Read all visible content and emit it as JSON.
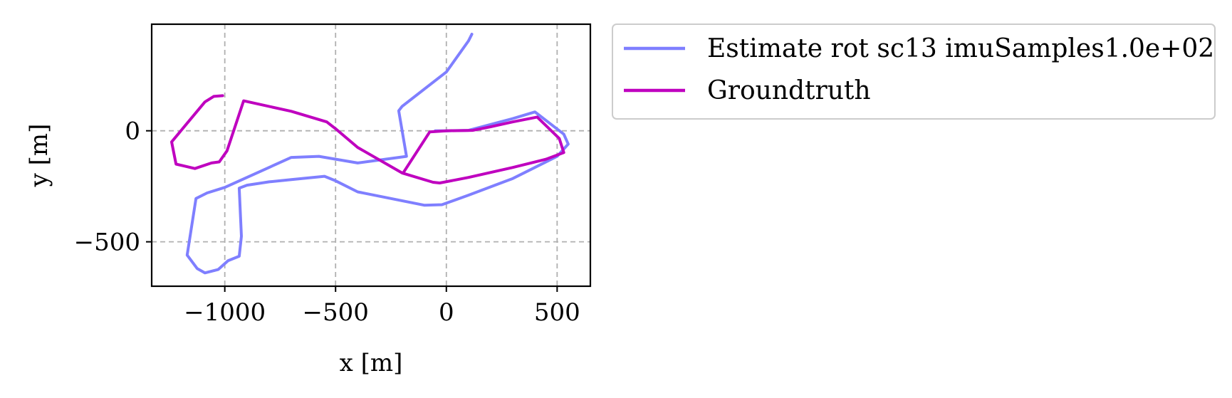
{
  "chart_data": {
    "type": "line",
    "title": "",
    "xlabel": "x [m]",
    "ylabel": "y [m]",
    "xlim": [
      -1330,
      650
    ],
    "ylim": [
      -700,
      480
    ],
    "xticks": [
      -1000,
      -500,
      0,
      500
    ],
    "yticks": [
      -500,
      0
    ],
    "xtick_labels": [
      "−1000",
      "−500",
      "0",
      "500"
    ],
    "ytick_labels": [
      "−500",
      "0"
    ],
    "grid": true,
    "legend_position": "outside-right-top",
    "series": [
      {
        "name": "Estimate rot sc13 imuSamples1.0e+02",
        "color": "#7f7fff",
        "points": [
          [
            115,
            435
          ],
          [
            100,
            405
          ],
          [
            0,
            265
          ],
          [
            -200,
            110
          ],
          [
            -215,
            90
          ],
          [
            -180,
            -115
          ],
          [
            -400,
            -145
          ],
          [
            -575,
            -115
          ],
          [
            -700,
            -120
          ],
          [
            -1000,
            -255
          ],
          [
            -1080,
            -280
          ],
          [
            -1130,
            -305
          ],
          [
            -1170,
            -560
          ],
          [
            -1125,
            -620
          ],
          [
            -1090,
            -640
          ],
          [
            -1030,
            -625
          ],
          [
            -985,
            -585
          ],
          [
            -935,
            -565
          ],
          [
            -925,
            -475
          ],
          [
            -935,
            -258
          ],
          [
            -900,
            -245
          ],
          [
            -800,
            -230
          ],
          [
            -700,
            -220
          ],
          [
            -550,
            -205
          ],
          [
            -500,
            -225
          ],
          [
            -400,
            -275
          ],
          [
            -100,
            -335
          ],
          [
            -20,
            -333
          ],
          [
            100,
            -290
          ],
          [
            300,
            -215
          ],
          [
            500,
            -115
          ],
          [
            550,
            -60
          ],
          [
            530,
            -15
          ],
          [
            400,
            85
          ],
          [
            300,
            55
          ],
          [
            100,
            2
          ],
          [
            0,
            0
          ],
          [
            -50,
            0
          ]
        ]
      },
      {
        "name": "Groundtruth",
        "color": "#bf00bf",
        "points": [
          [
            -1010,
            158
          ],
          [
            -1050,
            155
          ],
          [
            -1090,
            130
          ],
          [
            -1240,
            -50
          ],
          [
            -1220,
            -150
          ],
          [
            -1135,
            -170
          ],
          [
            -1060,
            -145
          ],
          [
            -1025,
            -140
          ],
          [
            -990,
            -90
          ],
          [
            -915,
            135
          ],
          [
            -700,
            88
          ],
          [
            -540,
            40
          ],
          [
            -495,
            5
          ],
          [
            -400,
            -75
          ],
          [
            -200,
            -190
          ],
          [
            -60,
            -232
          ],
          [
            -30,
            -235
          ],
          [
            100,
            -210
          ],
          [
            300,
            -165
          ],
          [
            450,
            -128
          ],
          [
            530,
            -98
          ],
          [
            510,
            -35
          ],
          [
            410,
            62
          ],
          [
            300,
            40
          ],
          [
            200,
            18
          ],
          [
            120,
            2
          ],
          [
            0,
            0
          ],
          [
            -75,
            -5
          ],
          [
            -195,
            -190
          ]
        ]
      }
    ]
  }
}
